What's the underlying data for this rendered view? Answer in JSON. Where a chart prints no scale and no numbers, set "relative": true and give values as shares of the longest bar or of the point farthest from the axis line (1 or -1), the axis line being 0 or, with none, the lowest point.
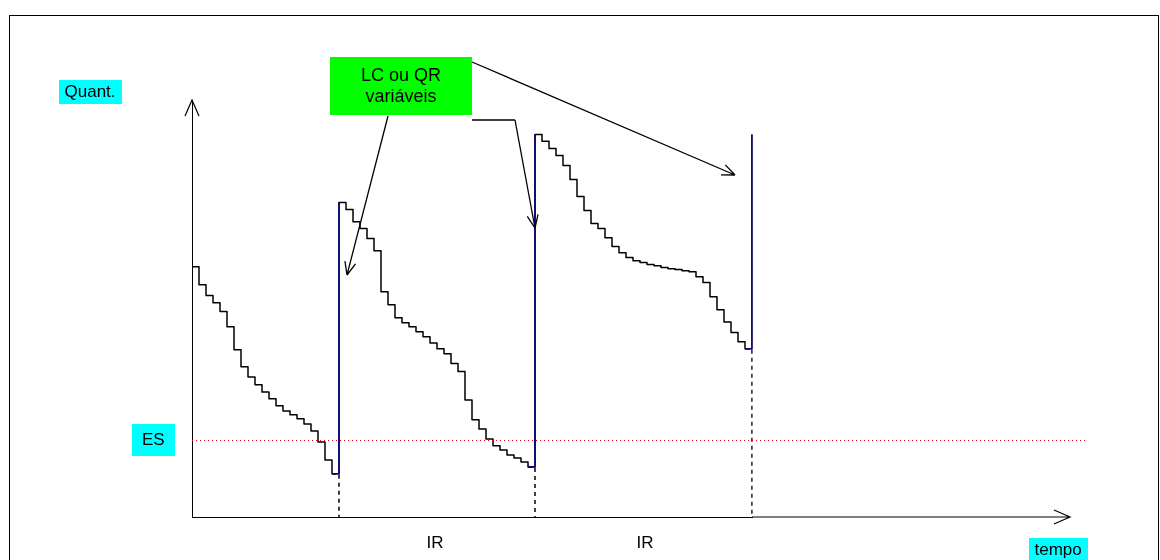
{
  "chart_data": {
    "type": "step",
    "relative": true,
    "marker": "none",
    "categories": [
      null,
      null,
      null,
      null,
      null,
      null,
      null,
      null,
      null,
      null,
      null,
      null,
      null,
      null,
      null,
      null,
      null,
      null,
      null,
      null,
      null,
      null,
      null,
      null,
      null,
      null,
      null,
      null,
      null,
      null,
      null,
      null,
      null,
      null,
      null,
      null,
      null,
      null,
      null,
      null,
      null,
      null,
      null,
      null,
      null,
      null,
      null,
      null,
      null,
      null,
      null,
      null,
      null,
      null,
      null,
      null,
      null,
      null,
      null,
      null,
      null,
      null,
      null,
      null,
      null,
      null,
      null,
      null,
      null,
      null,
      null,
      null,
      null,
      null,
      null,
      null,
      null,
      null,
      null,
      null,
      null
    ],
    "series": [
      {
        "color": "#000000",
        "values": [
          0.654,
          0.607,
          0.579,
          0.56,
          0.537,
          0.497,
          0.437,
          0.393,
          0.366,
          0.346,
          0.327,
          0.309,
          0.291,
          0.277,
          0.267,
          0.257,
          0.243,
          0.225,
          0.196,
          0.149,
          0.113,
          0.822,
          0.804,
          0.772,
          0.754,
          0.728,
          0.696,
          0.589,
          0.555,
          0.521,
          0.508,
          0.497,
          0.484,
          0.471,
          0.455,
          0.44,
          0.427,
          0.401,
          0.38,
          0.306,
          0.254,
          0.23,
          0.204,
          0.186,
          0.175,
          0.162,
          0.154,
          0.144,
          0.131,
          1,
          0.982,
          0.963,
          0.945,
          0.919,
          0.882,
          0.838,
          0.801,
          0.767,
          0.754,
          0.73,
          0.707,
          0.691,
          0.678,
          0.67,
          0.665,
          0.66,
          0.657,
          0.652,
          0.649,
          0.647,
          0.644,
          0.641,
          0.628,
          0.613,
          0.576,
          0.542,
          0.51,
          0.482,
          0.458,
          0.44,
          1
        ]
      },
      {
        "color": "#00008b",
        "values": [
          null,
          null,
          null,
          null,
          null,
          null,
          null,
          null,
          null,
          null,
          null,
          null,
          null,
          null,
          null,
          null,
          null,
          null,
          null,
          null,
          0.113,
          0.822,
          null,
          null,
          null,
          null,
          null,
          null,
          null,
          null,
          null,
          null,
          null,
          null,
          null,
          null,
          null,
          null,
          null,
          null,
          null,
          null,
          null,
          null,
          null,
          null,
          null,
          null,
          null,
          null,
          null,
          null,
          null,
          null,
          null,
          null,
          null,
          null,
          null,
          null,
          null,
          null,
          null,
          null,
          null,
          null,
          null,
          null,
          null,
          null,
          null,
          null,
          null,
          null,
          null,
          null,
          null,
          null,
          null,
          null,
          null
        ]
      },
      {
        "color": "#00008b",
        "values": [
          null,
          null,
          null,
          null,
          null,
          null,
          null,
          null,
          null,
          null,
          null,
          null,
          null,
          null,
          null,
          null,
          null,
          null,
          null,
          null,
          null,
          null,
          null,
          null,
          null,
          null,
          null,
          null,
          null,
          null,
          null,
          null,
          null,
          null,
          null,
          null,
          null,
          null,
          null,
          null,
          null,
          null,
          null,
          null,
          null,
          null,
          null,
          null,
          0.131,
          1,
          null,
          null,
          null,
          null,
          null,
          null,
          null,
          null,
          null,
          null,
          null,
          null,
          null,
          null,
          null,
          null,
          null,
          null,
          null,
          null,
          null,
          null,
          null,
          null,
          null,
          null,
          null,
          null,
          null,
          null,
          null
        ]
      },
      {
        "color": "#00008b",
        "values": [
          null,
          null,
          null,
          null,
          null,
          null,
          null,
          null,
          null,
          null,
          null,
          null,
          null,
          null,
          null,
          null,
          null,
          null,
          null,
          null,
          null,
          null,
          null,
          null,
          null,
          null,
          null,
          null,
          null,
          null,
          null,
          null,
          null,
          null,
          null,
          null,
          null,
          null,
          null,
          null,
          null,
          null,
          null,
          null,
          null,
          null,
          null,
          null,
          null,
          null,
          null,
          null,
          null,
          null,
          null,
          null,
          null,
          null,
          null,
          null,
          null,
          null,
          null,
          null,
          null,
          null,
          null,
          null,
          null,
          null,
          null,
          null,
          null,
          null,
          null,
          null,
          null,
          null,
          null,
          0.44,
          1
        ]
      },
      {
        "color": "#000000",
        "line_style": "dashed",
        "values": [
          null,
          null,
          null,
          null,
          null,
          null,
          null,
          null,
          null,
          null,
          null,
          null,
          null,
          null,
          null,
          null,
          null,
          null,
          null,
          null,
          0.113,
          0,
          null,
          null,
          null,
          null,
          null,
          null,
          null,
          null,
          null,
          null,
          null,
          null,
          null,
          null,
          null,
          null,
          null,
          null,
          null,
          null,
          null,
          null,
          null,
          null,
          null,
          null,
          null,
          null,
          null,
          null,
          null,
          null,
          null,
          null,
          null,
          null,
          null,
          null,
          null,
          null,
          null,
          null,
          null,
          null,
          null,
          null,
          null,
          null,
          null,
          null,
          null,
          null,
          null,
          null,
          null,
          null,
          null,
          null,
          null
        ]
      },
      {
        "color": "#000000",
        "line_style": "dashed",
        "values": [
          null,
          null,
          null,
          null,
          null,
          null,
          null,
          null,
          null,
          null,
          null,
          null,
          null,
          null,
          null,
          null,
          null,
          null,
          null,
          null,
          null,
          null,
          null,
          null,
          null,
          null,
          null,
          null,
          null,
          null,
          null,
          null,
          null,
          null,
          null,
          null,
          null,
          null,
          null,
          null,
          null,
          null,
          null,
          null,
          null,
          null,
          null,
          null,
          0.131,
          0,
          null,
          null,
          null,
          null,
          null,
          null,
          null,
          null,
          null,
          null,
          null,
          null,
          null,
          null,
          null,
          null,
          null,
          null,
          null,
          null,
          null,
          null,
          null,
          null,
          null,
          null,
          null,
          null,
          null,
          null,
          null
        ]
      },
      {
        "color": "#000000",
        "line_style": "dashed",
        "values": [
          null,
          null,
          null,
          null,
          null,
          null,
          null,
          null,
          null,
          null,
          null,
          null,
          null,
          null,
          null,
          null,
          null,
          null,
          null,
          null,
          null,
          null,
          null,
          null,
          null,
          null,
          null,
          null,
          null,
          null,
          null,
          null,
          null,
          null,
          null,
          null,
          null,
          null,
          null,
          null,
          null,
          null,
          null,
          null,
          null,
          null,
          null,
          null,
          null,
          null,
          null,
          null,
          null,
          null,
          null,
          null,
          null,
          null,
          null,
          null,
          null,
          null,
          null,
          null,
          null,
          null,
          null,
          null,
          null,
          null,
          null,
          null,
          null,
          null,
          null,
          null,
          null,
          null,
          null,
          0.44,
          0
        ]
      }
    ],
    "ref_lines": [
      {
        "axis": "y",
        "value": 0.2,
        "label": "ES",
        "color": "#ff0000",
        "line_style": "dotted"
      }
    ],
    "annotations": [
      "Quant.",
      "tempo",
      "IR",
      "IR",
      "LC ou QR variáveis"
    ]
  }
}
